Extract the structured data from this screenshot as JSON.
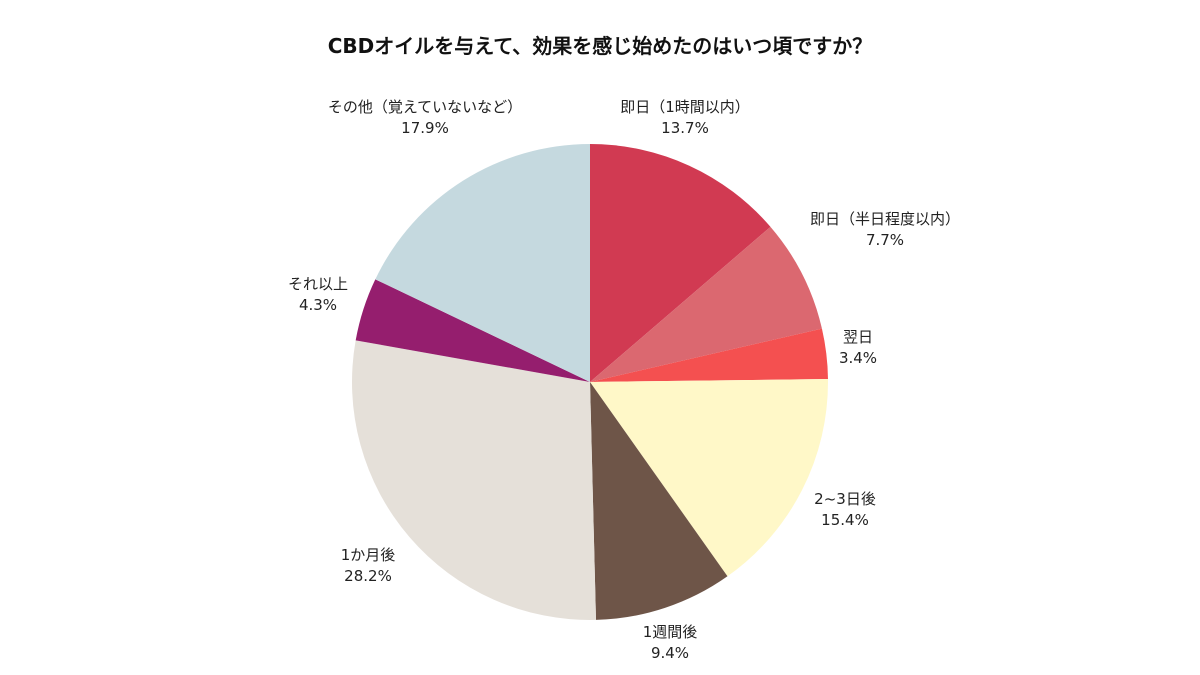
{
  "chart_data": {
    "type": "pie",
    "title": "CBDオイルを与えて、効果を感じ始めたのはいつ頃ですか？",
    "start": "top",
    "direction": "clockwise",
    "slices": [
      {
        "label": "即日（1時間以内）",
        "value": 13.7,
        "value_label": "13.7%",
        "color": "#d13a52"
      },
      {
        "label": "即日（半日程度以内）",
        "value": 7.7,
        "value_label": "7.7%",
        "color": "#db6870"
      },
      {
        "label": "翌日",
        "value": 3.4,
        "value_label": "3.4%",
        "color": "#f45050"
      },
      {
        "label": "2~3日後",
        "value": 15.4,
        "value_label": "15.4%",
        "color": "#fff8c8"
      },
      {
        "label": "1週間後",
        "value": 9.4,
        "value_label": "9.4%",
        "color": "#6e5548"
      },
      {
        "label": "1か月後",
        "value": 28.2,
        "value_label": "28.2%",
        "color": "#e5e0d9"
      },
      {
        "label": "それ以上",
        "value": 4.3,
        "value_label": "4.3%",
        "color": "#951e6e"
      },
      {
        "label": "その他（覚えていないなど）",
        "value": 17.9,
        "value_label": "17.9%",
        "color": "#c5d9df"
      }
    ]
  }
}
